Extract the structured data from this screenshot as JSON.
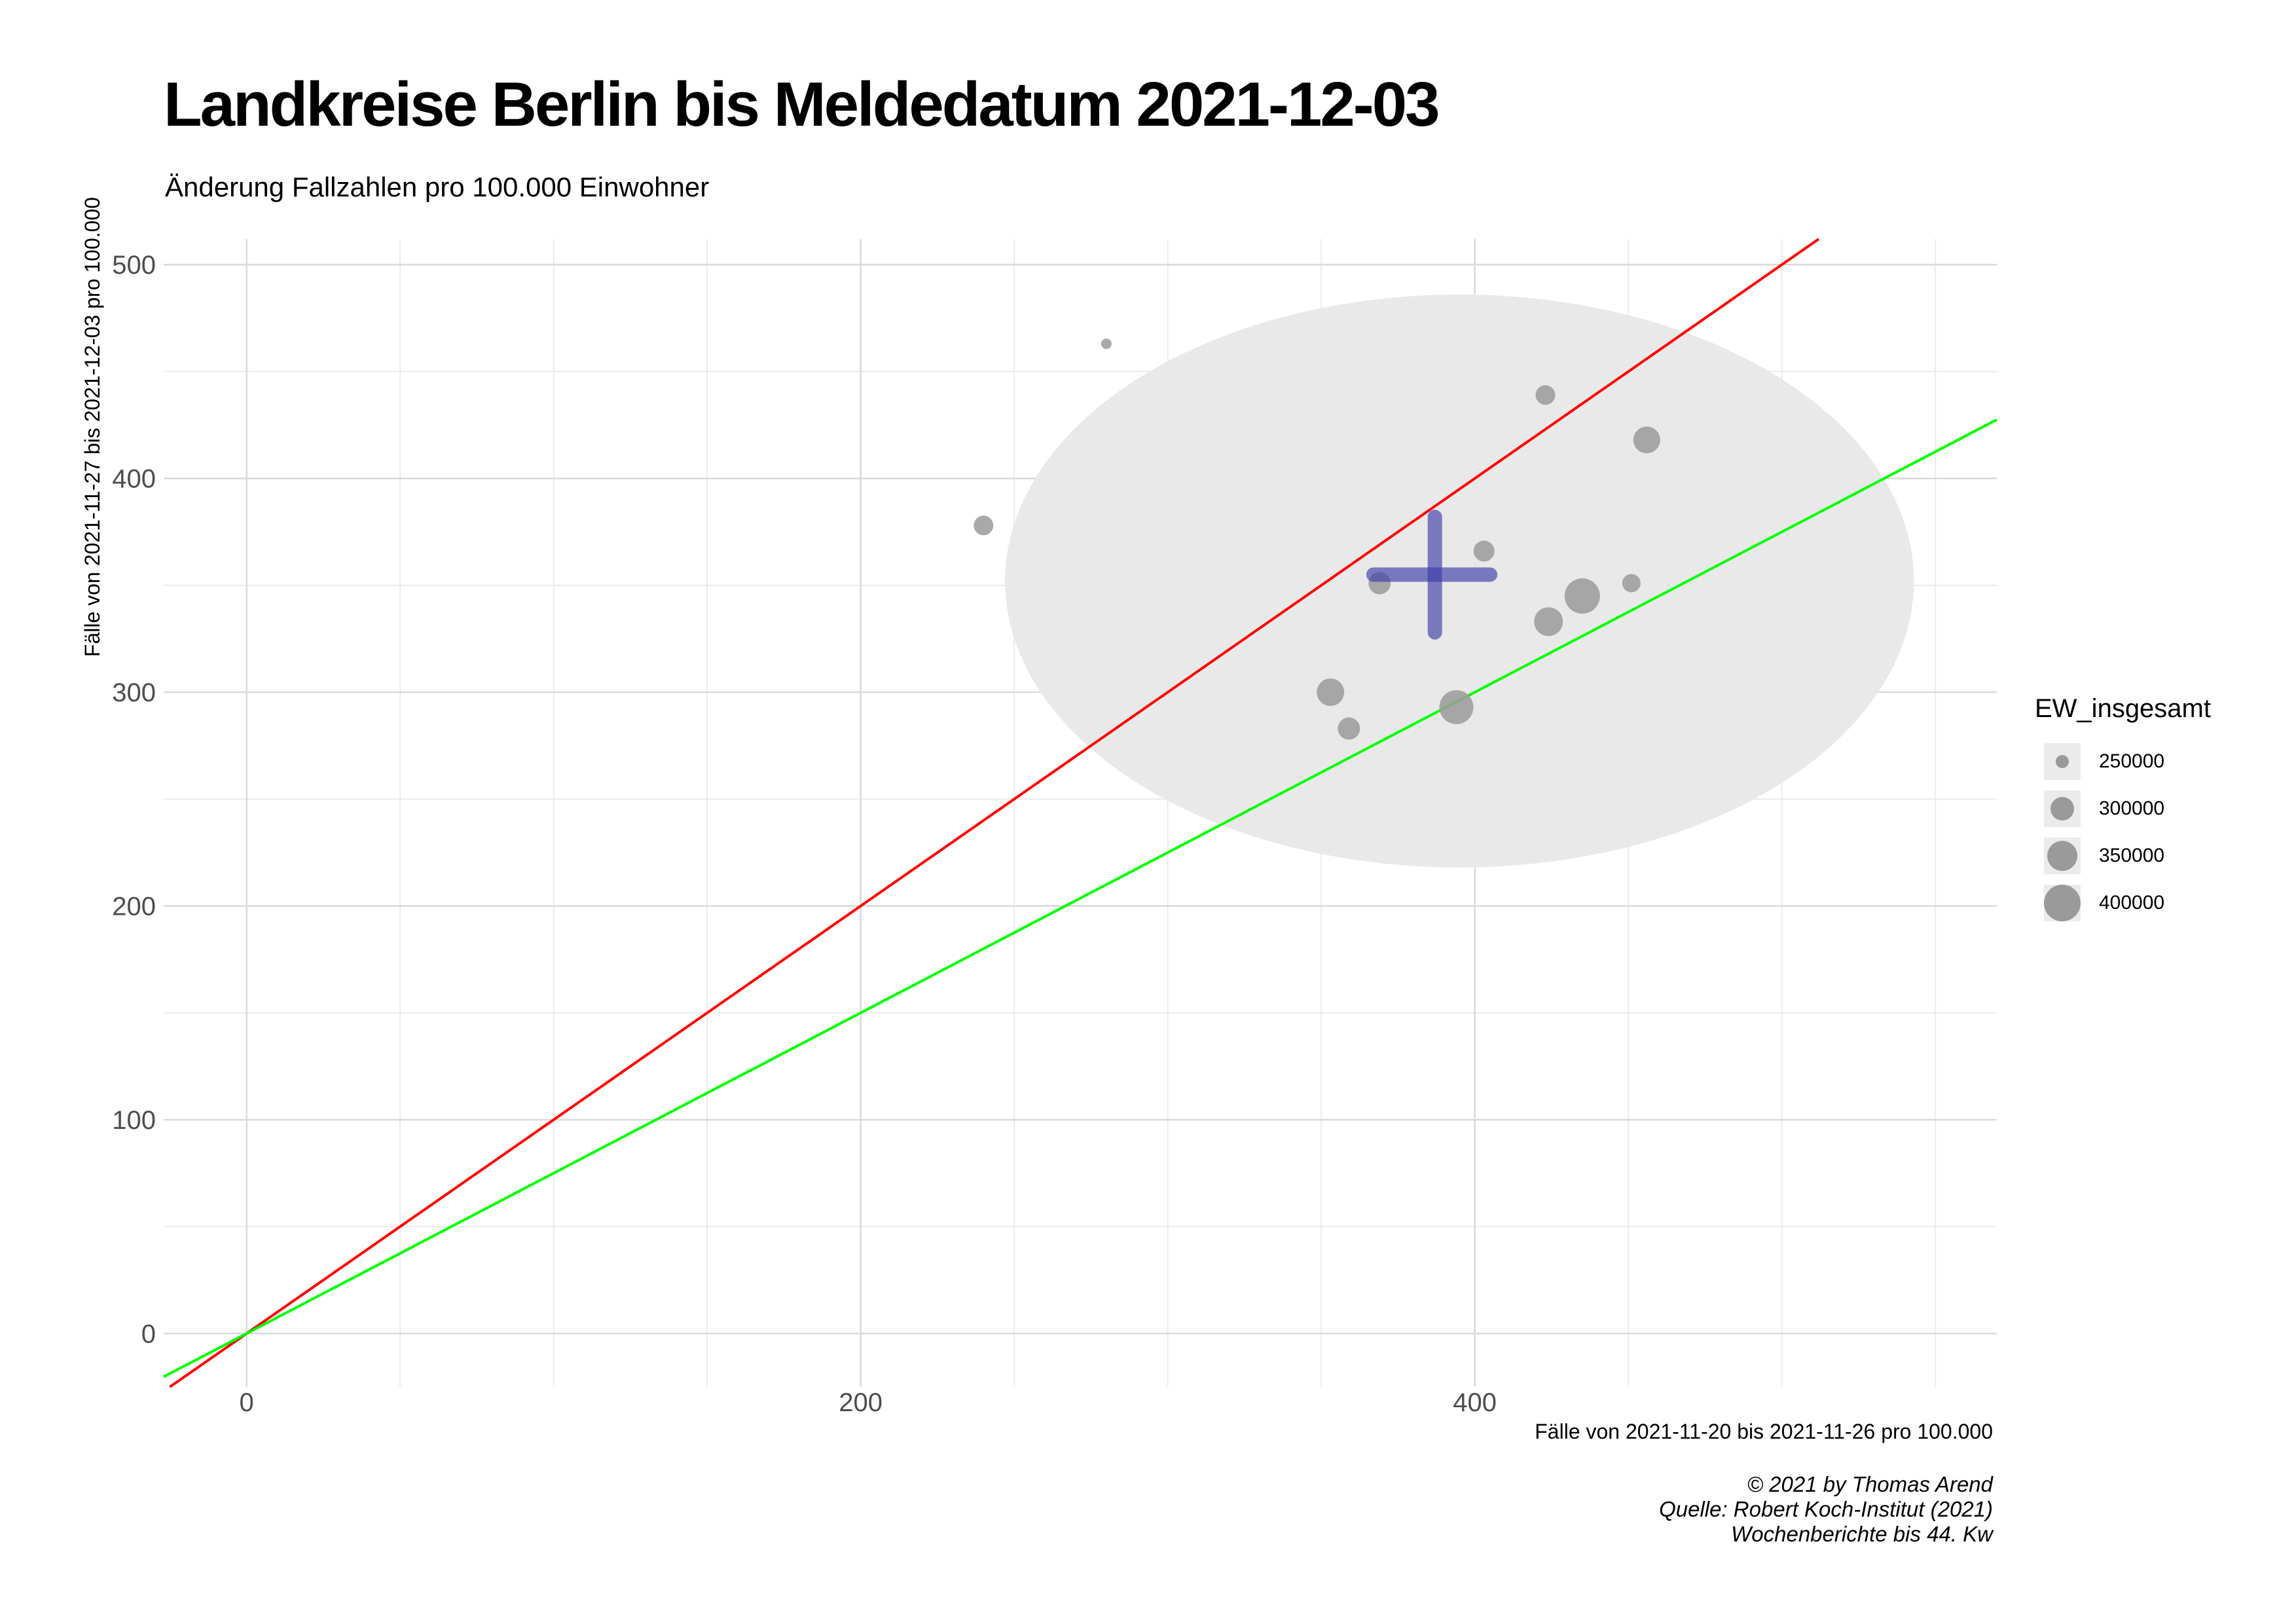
{
  "title": "Landkreise Berlin bis Meldedatum 2021-12-03",
  "subtitle": "Änderung Fallzahlen pro 100.000 Einwohner",
  "caption": [
    "© 2021 by Thomas Arend",
    "Quelle: Robert Koch-Institut (2021)",
    "Wochenberichte bis 44. Kw"
  ],
  "chart_data": {
    "type": "scatter",
    "xlabel": "Fälle von 2021-11-20 bis 2021-11-26 pro 100.000",
    "ylabel": "Fälle von 2021-11-27 bis 2021-12-03 pro 100.000",
    "xlim": [
      -27,
      570
    ],
    "ylim": [
      -25,
      512
    ],
    "x_ticks": [
      0,
      200,
      400
    ],
    "y_ticks": [
      0,
      100,
      200,
      300,
      400,
      500
    ],
    "grid": true,
    "points": [
      {
        "x": 280,
        "y": 463,
        "ew": 220000
      },
      {
        "x": 240,
        "y": 378,
        "ew": 290000
      },
      {
        "x": 423,
        "y": 439,
        "ew": 290000
      },
      {
        "x": 456,
        "y": 418,
        "ew": 345000
      },
      {
        "x": 403,
        "y": 366,
        "ew": 300000
      },
      {
        "x": 369,
        "y": 351,
        "ew": 310000
      },
      {
        "x": 451,
        "y": 351,
        "ew": 280000
      },
      {
        "x": 435,
        "y": 345,
        "ew": 410000
      },
      {
        "x": 424,
        "y": 333,
        "ew": 360000
      },
      {
        "x": 353,
        "y": 300,
        "ew": 350000
      },
      {
        "x": 359,
        "y": 283,
        "ew": 310000
      },
      {
        "x": 394,
        "y": 293,
        "ew": 400000
      }
    ],
    "mean": {
      "x": 387,
      "y": 355,
      "x_range": [
        367,
        405
      ],
      "y_range": [
        328,
        382
      ],
      "color": "#3d3daa"
    },
    "ellipse": {
      "cx": 395,
      "cy": 352,
      "rx": 148,
      "ry": 134,
      "color": "#e8e8e8"
    },
    "reference_lines": [
      {
        "slope": 1.0,
        "intercept": 0,
        "color": "#ff0000"
      },
      {
        "slope": 0.75,
        "intercept": 0,
        "color": "#00ff00"
      }
    ],
    "legend": {
      "title": "EW_insgesamt",
      "position": "right",
      "entries": [
        {
          "label": "250000",
          "value": 250000
        },
        {
          "label": "300000",
          "value": 300000
        },
        {
          "label": "350000",
          "value": 350000
        },
        {
          "label": "400000",
          "value": 400000
        }
      ]
    },
    "point_color": "#9a9a9a"
  }
}
